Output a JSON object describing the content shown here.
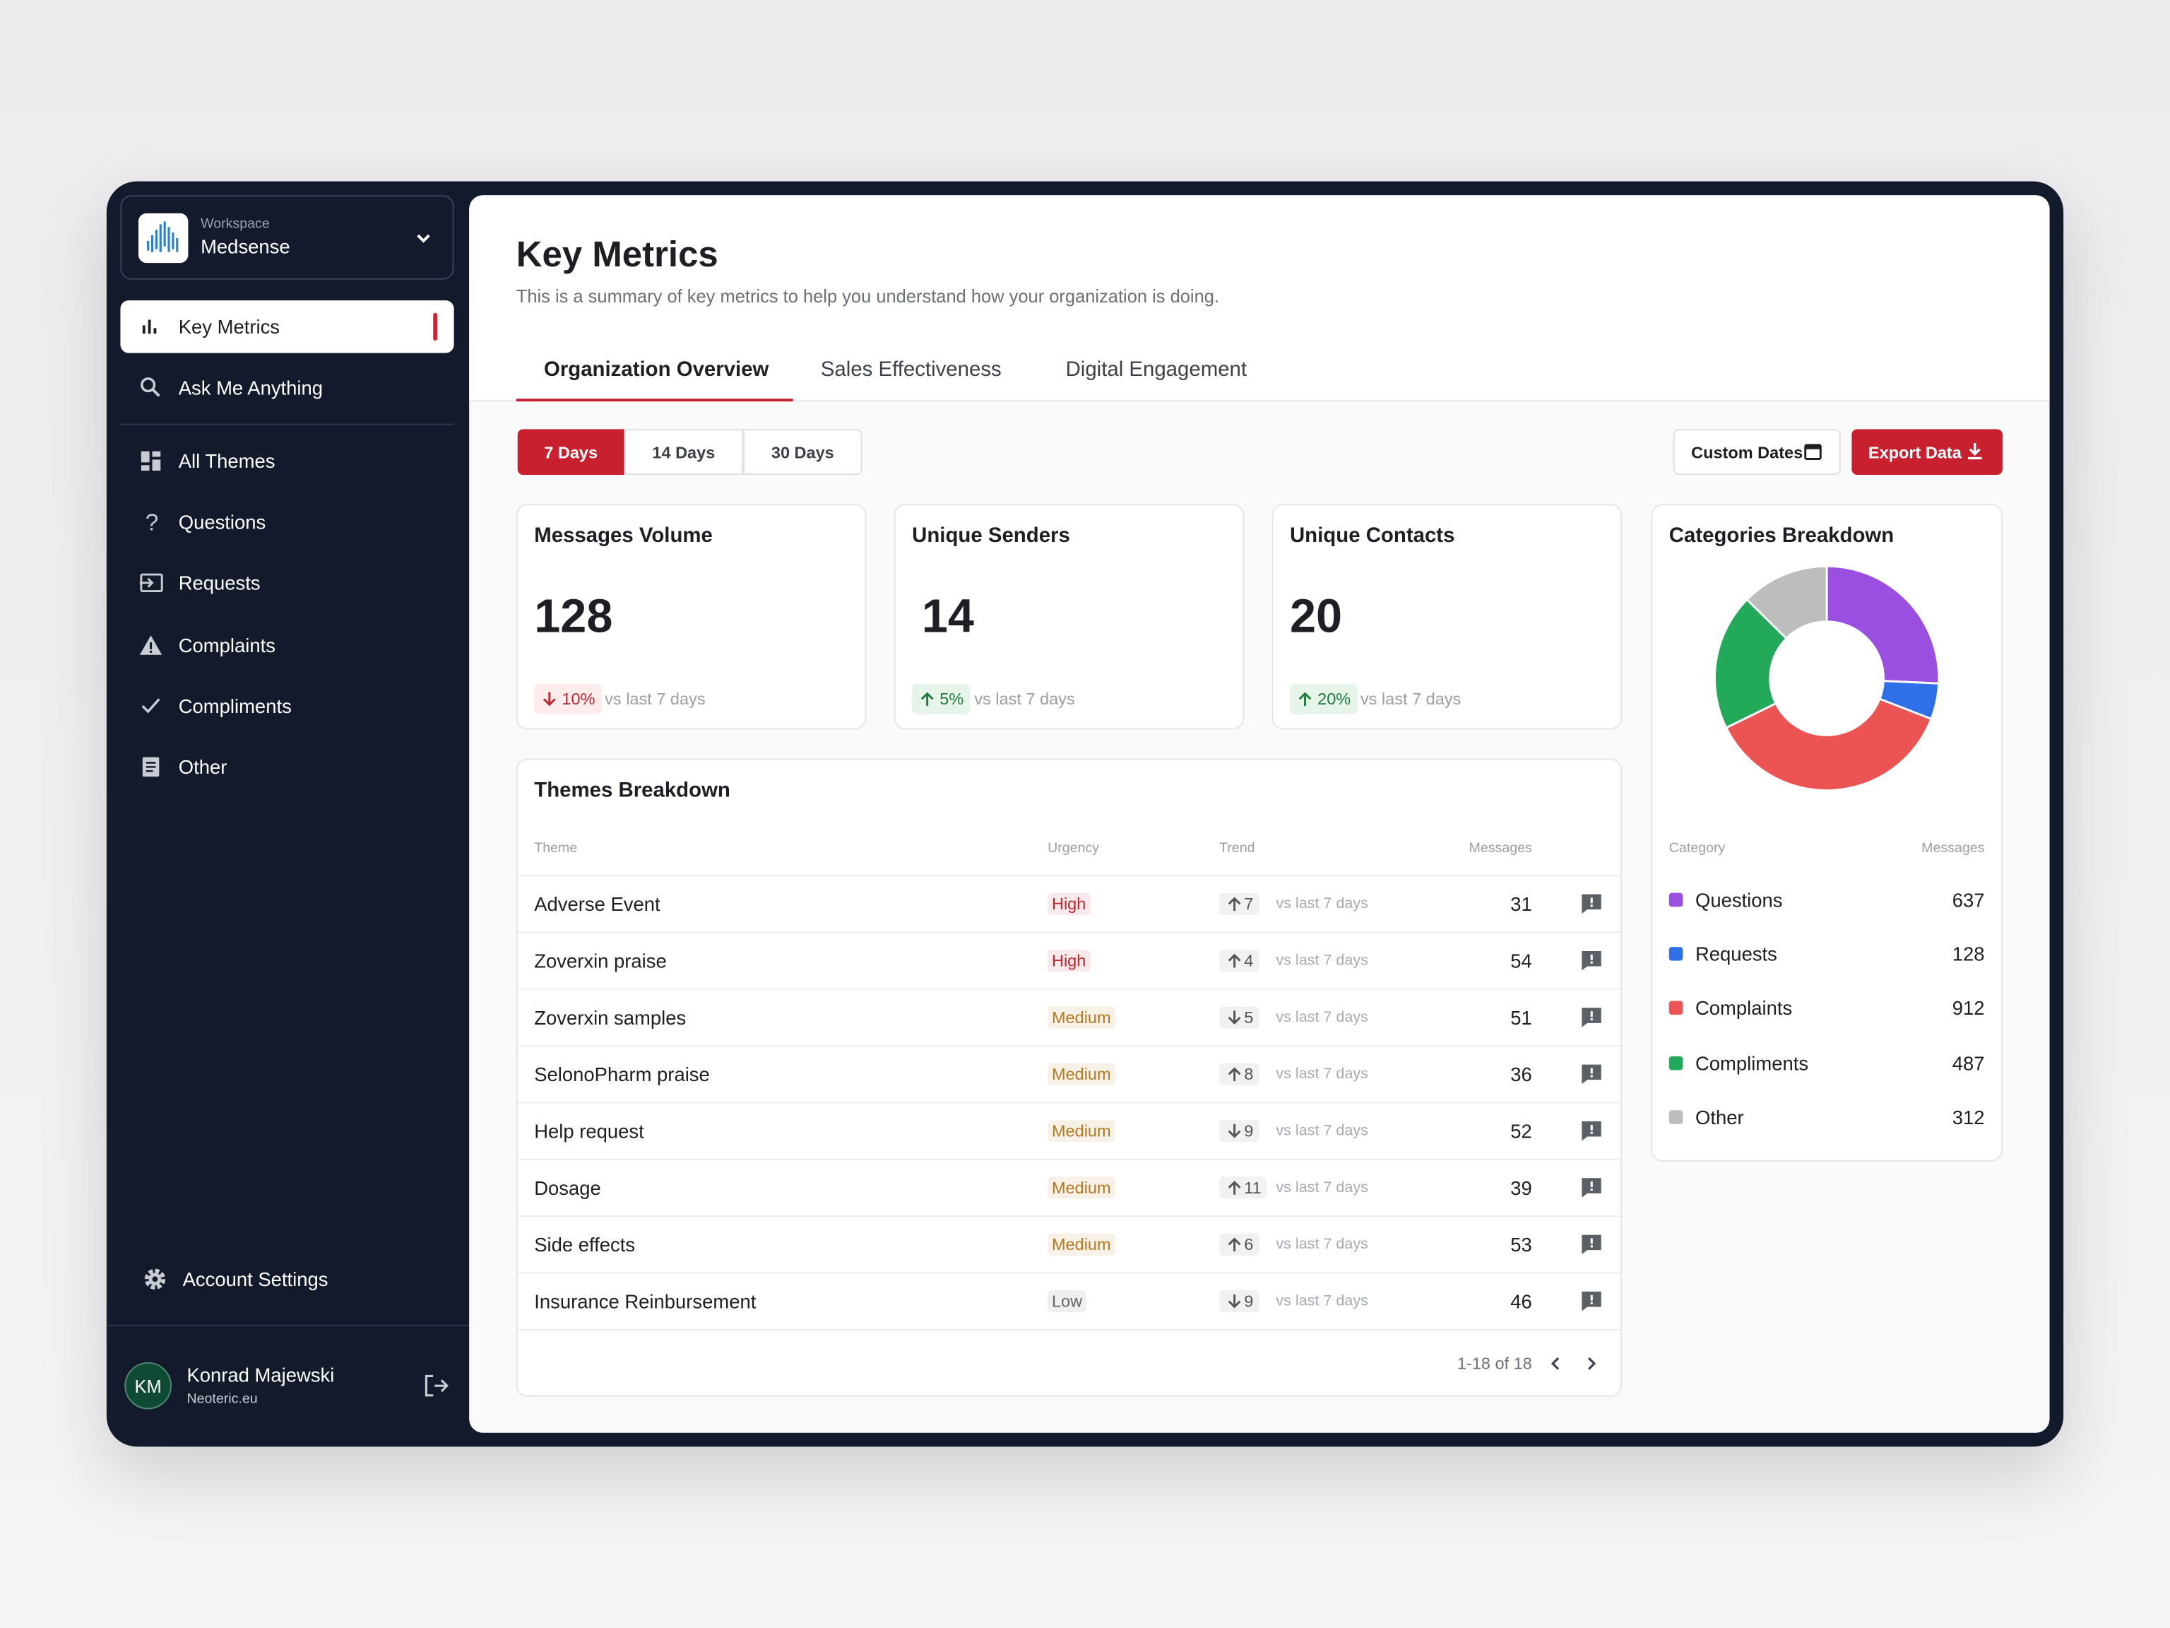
{
  "sidebar": {
    "workspace_label": "Workspace",
    "workspace_name": "Medsense",
    "nav": [
      "Key Metrics",
      "Ask Me Anything",
      "All Themes",
      "Questions",
      "Requests",
      "Complaints",
      "Compliments",
      "Other"
    ],
    "settings": "Account Settings",
    "user": {
      "initials": "KM",
      "name": "Konrad Majewski",
      "org": "Neoteric.eu"
    }
  },
  "header": {
    "title": "Key Metrics",
    "subtitle": "This is a summary of key metrics to help you understand how your organization is doing."
  },
  "tabs": [
    "Organization Overview",
    "Sales Effectiveness",
    "Digital Engagement"
  ],
  "ranges": [
    "7 Days",
    "14 Days",
    "30 Days"
  ],
  "actions": [
    "Custom Dates",
    "Export Data"
  ],
  "kpis": [
    {
      "title": "Messages Volume",
      "value": 128,
      "change": "10%",
      "dir": "down",
      "note": "vs last 7 days"
    },
    {
      "title": "Unique Senders",
      "value": 14,
      "change": "5%",
      "dir": "up",
      "note": "vs last 7 days"
    },
    {
      "title": "Unique Contacts",
      "value": 20,
      "change": "20%",
      "dir": "up",
      "note": "vs last 7 days"
    }
  ],
  "themes": {
    "title": "Themes Breakdown",
    "columns": [
      "Theme",
      "Urgency",
      "Trend",
      "Messages"
    ],
    "rows": [
      {
        "theme": "Adverse Event",
        "urgency": "High",
        "urgency_color": "#c0262d",
        "trend": 7,
        "trend_dir": "up",
        "note": "vs last 7 days",
        "messages": 31
      },
      {
        "theme": "Zoverxin praise",
        "urgency": "High",
        "urgency_color": "#c0262d",
        "trend": 4,
        "trend_dir": "up",
        "note": "vs last 7 days",
        "messages": 54
      },
      {
        "theme": "Zoverxin samples",
        "urgency": "Medium",
        "urgency_color": "#b7791f",
        "trend": 5,
        "trend_dir": "down",
        "note": "vs last 7 days",
        "messages": 51
      },
      {
        "theme": "SelonoPharm praise",
        "urgency": "Medium",
        "urgency_color": "#b7791f",
        "trend": 8,
        "trend_dir": "up",
        "note": "vs last 7 days",
        "messages": 36
      },
      {
        "theme": "Help request",
        "urgency": "Medium",
        "urgency_color": "#b7791f",
        "trend": 9,
        "trend_dir": "down",
        "note": "vs last 7 days",
        "messages": 52
      },
      {
        "theme": "Dosage",
        "urgency": "Medium",
        "urgency_color": "#b7791f",
        "trend": 11,
        "trend_dir": "up",
        "note": "vs last 7 days",
        "messages": 39
      },
      {
        "theme": "Side effects",
        "urgency": "Medium",
        "urgency_color": "#b7791f",
        "trend": 6,
        "trend_dir": "up",
        "note": "vs last 7 days",
        "messages": 53
      },
      {
        "theme": "Insurance Reinbursement",
        "urgency": "Low",
        "urgency_color": "#666666",
        "trend": 9,
        "trend_dir": "down",
        "note": "vs last 7 days",
        "messages": 46
      }
    ],
    "pagination": "1-18 of 18"
  },
  "categories": {
    "title": "Categories Breakdown",
    "columns": [
      "Category",
      "Messages"
    ],
    "items": [
      {
        "name": "Questions",
        "color": "#9b4fe0",
        "value": 637
      },
      {
        "name": "Requests",
        "color": "#2f6fe8",
        "value": 128
      },
      {
        "name": "Complaints",
        "color": "#ec5454",
        "value": 912
      },
      {
        "name": "Compliments",
        "color": "#22a95a",
        "value": 487
      },
      {
        "name": "Other",
        "color": "#bdbdbd",
        "value": 312
      }
    ]
  }
}
